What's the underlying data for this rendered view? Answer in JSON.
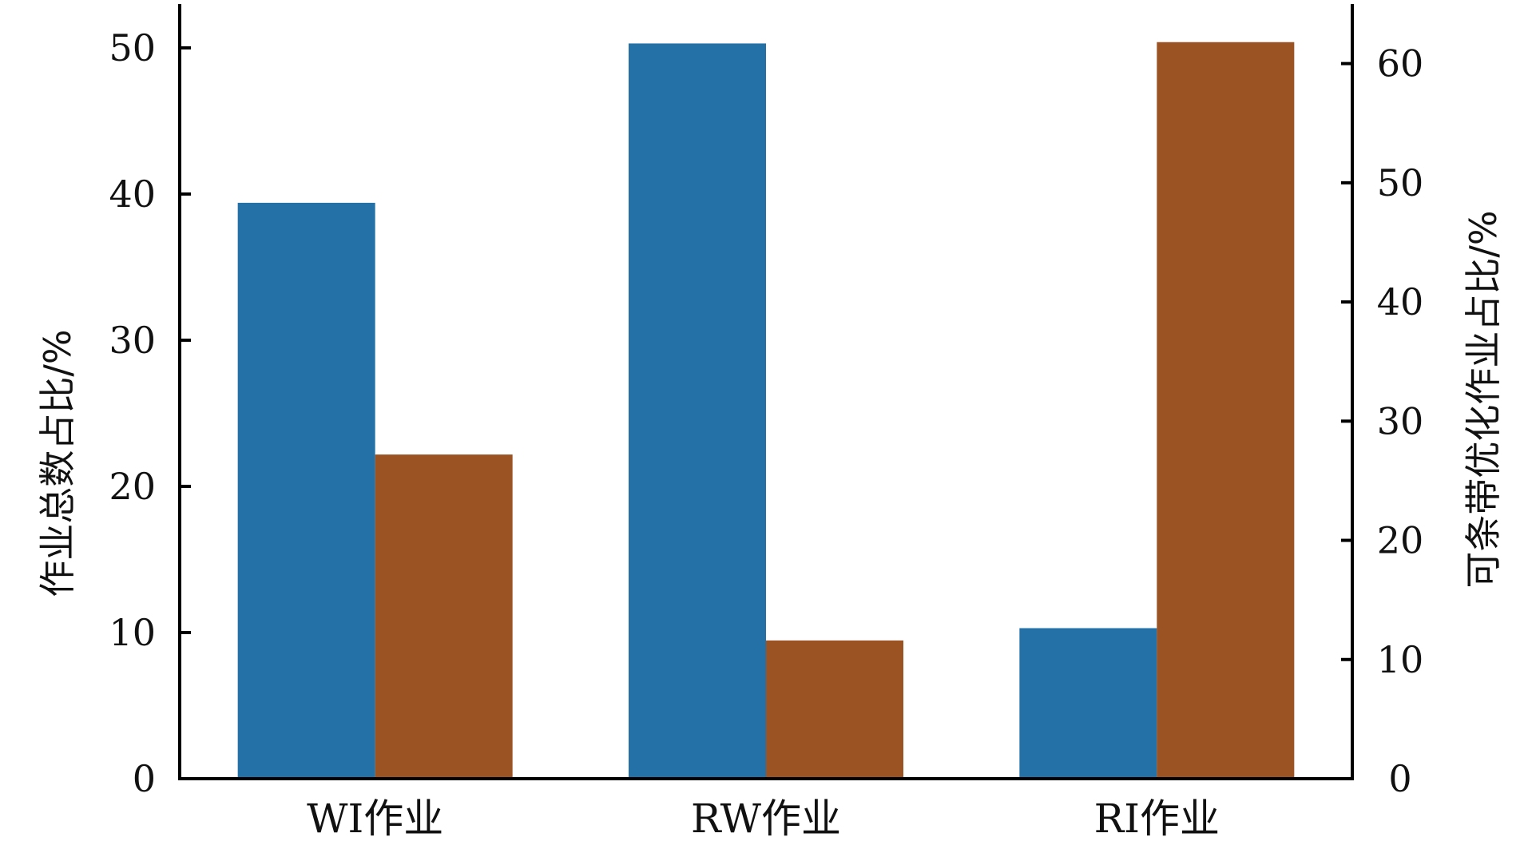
{
  "chart_data": {
    "type": "bar",
    "categories": [
      "WI作业",
      "RW作业",
      "RI作业"
    ],
    "series": [
      {
        "axis": "left",
        "color": "#2471a8",
        "values": [
          39.4,
          50.3,
          10.3
        ]
      },
      {
        "axis": "right",
        "color": "#9b5323",
        "values": [
          27.2,
          11.6,
          61.8
        ]
      }
    ],
    "ylabel_left": "作业总数占比/%",
    "ylabel_right": "可条带优化作业占比/%",
    "ylim_left": [
      0,
      53
    ],
    "ylim_right": [
      0,
      65
    ],
    "yticks_left": [
      0,
      10,
      20,
      30,
      40,
      50
    ],
    "yticks_right": [
      0,
      10,
      20,
      30,
      40,
      50,
      60
    ],
    "grid": false,
    "legend": "none"
  }
}
